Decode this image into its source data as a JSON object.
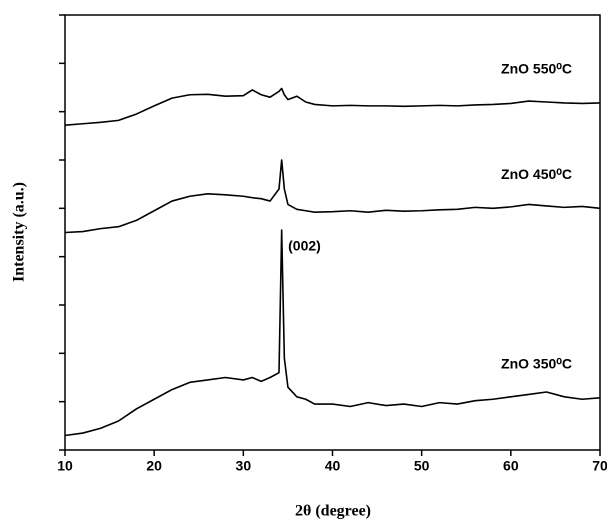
{
  "chart_data": {
    "type": "line",
    "xlabel": "2θ (degree)",
    "ylabel": "Intensity (a.u.)",
    "x": [
      10,
      12,
      14,
      16,
      18,
      20,
      22,
      24,
      26,
      28,
      30,
      31,
      32,
      33,
      34,
      34.3,
      34.6,
      35,
      36,
      37,
      38,
      40,
      42,
      44,
      46,
      48,
      50,
      52,
      54,
      56,
      58,
      60,
      62,
      64,
      66,
      68,
      70
    ],
    "series": [
      {
        "name": "ZnO 350⁰C",
        "color": "#000000",
        "values": [
          0.3,
          0.35,
          0.45,
          0.6,
          0.85,
          1.05,
          1.25,
          1.4,
          1.45,
          1.5,
          1.45,
          1.5,
          1.42,
          1.5,
          1.6,
          4.55,
          1.9,
          1.3,
          1.1,
          1.05,
          0.95,
          0.95,
          0.9,
          0.98,
          0.92,
          0.95,
          0.9,
          0.98,
          0.95,
          1.02,
          1.05,
          1.1,
          1.15,
          1.2,
          1.1,
          1.05,
          1.08
        ]
      },
      {
        "name": "ZnO 450⁰C",
        "color": "#000000",
        "values": [
          4.5,
          4.52,
          4.58,
          4.62,
          4.75,
          4.95,
          5.15,
          5.25,
          5.3,
          5.28,
          5.25,
          5.22,
          5.2,
          5.15,
          5.4,
          6.0,
          5.4,
          5.08,
          4.98,
          4.95,
          4.92,
          4.93,
          4.95,
          4.92,
          4.96,
          4.94,
          4.95,
          4.97,
          4.98,
          5.02,
          5.0,
          5.03,
          5.08,
          5.05,
          5.02,
          5.04,
          5.0
        ]
      },
      {
        "name": "ZnO 550⁰C",
        "color": "#000000",
        "values": [
          6.72,
          6.75,
          6.78,
          6.82,
          6.95,
          7.12,
          7.28,
          7.35,
          7.36,
          7.32,
          7.33,
          7.45,
          7.35,
          7.3,
          7.42,
          7.48,
          7.35,
          7.25,
          7.32,
          7.2,
          7.15,
          7.12,
          7.13,
          7.12,
          7.12,
          7.11,
          7.12,
          7.13,
          7.12,
          7.14,
          7.15,
          7.17,
          7.22,
          7.2,
          7.18,
          7.17,
          7.18
        ]
      }
    ],
    "annotations": [
      {
        "text": "(002)",
        "x": 34.8,
        "y": 4.2
      }
    ],
    "xlim": [
      10,
      70
    ],
    "xticks": [
      10,
      20,
      30,
      40,
      50,
      60,
      70
    ],
    "ylim": [
      0,
      9
    ],
    "yticks": [
      0,
      1,
      2,
      3,
      4,
      5,
      6,
      7,
      8,
      9
    ]
  }
}
